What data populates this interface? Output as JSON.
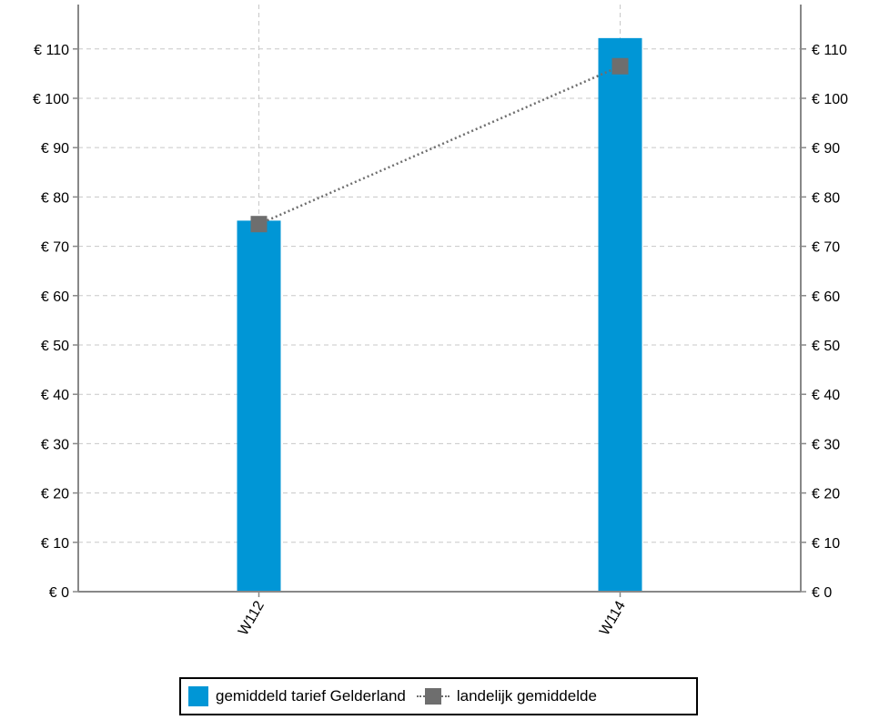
{
  "chart_data": {
    "type": "bar",
    "categories": [
      "W112",
      "W114"
    ],
    "series": [
      {
        "name": "gemiddeld tarief Gelderland",
        "type": "bar",
        "values": [
          75.2,
          112.2
        ],
        "color": "#0096d6"
      },
      {
        "name": "landelijk gemiddelde",
        "type": "line",
        "values": [
          74.5,
          106.5
        ],
        "color": "#6e6e6e",
        "line_style": "dotted",
        "marker": "square"
      }
    ],
    "ylim": [
      0,
      119
    ],
    "yticks": [
      0,
      10,
      20,
      30,
      40,
      50,
      60,
      70,
      80,
      90,
      100,
      110
    ],
    "y_tick_labels": [
      "€ 0",
      "€ 10",
      "€ 20",
      "€ 30",
      "€ 40",
      "€ 50",
      "€ 60",
      "€ 70",
      "€ 80",
      "€ 90",
      "€ 100",
      "€ 110"
    ],
    "grid": true,
    "legend_position": "bottom",
    "title": "",
    "xlabel": "",
    "ylabel": ""
  },
  "legend": {
    "bar_label": "gemiddeld tarief Gelderland",
    "line_label": "landelijk gemiddelde"
  }
}
